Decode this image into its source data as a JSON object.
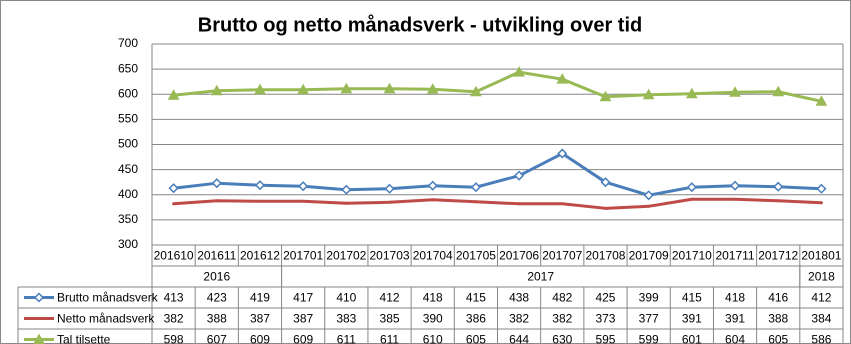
{
  "chart_data": {
    "type": "line",
    "title": "Brutto og netto månadsverk - utvikling over tid",
    "categories": [
      "201610",
      "201611",
      "201612",
      "201701",
      "201702",
      "201703",
      "201704",
      "201705",
      "201706",
      "201707",
      "201708",
      "201709",
      "201710",
      "201711",
      "201712",
      "201801"
    ],
    "category_groups": [
      {
        "label": "2016",
        "span": 3
      },
      {
        "label": "2017",
        "span": 12
      },
      {
        "label": "2018",
        "span": 1
      }
    ],
    "series": [
      {
        "name": "Brutto månadsverk",
        "color": "#4a7ebb",
        "marker": "diamond",
        "values": [
          413,
          423,
          419,
          417,
          410,
          412,
          418,
          415,
          438,
          482,
          425,
          399,
          415,
          418,
          416,
          412
        ]
      },
      {
        "name": "Netto månadsverk",
        "color": "#be4b48",
        "marker": "none",
        "values": [
          382,
          388,
          387,
          387,
          383,
          385,
          390,
          386,
          382,
          382,
          373,
          377,
          391,
          391,
          388,
          384
        ]
      },
      {
        "name": "Tal tilsette",
        "color": "#98b954",
        "marker": "triangle",
        "values": [
          598,
          607,
          609,
          609,
          611,
          611,
          610,
          605,
          644,
          630,
          595,
          599,
          601,
          604,
          605,
          586
        ]
      }
    ],
    "ylim": [
      300,
      700
    ],
    "yticks": [
      300,
      350,
      400,
      450,
      500,
      550,
      600,
      650,
      700
    ],
    "grid": true,
    "data_table": true
  }
}
